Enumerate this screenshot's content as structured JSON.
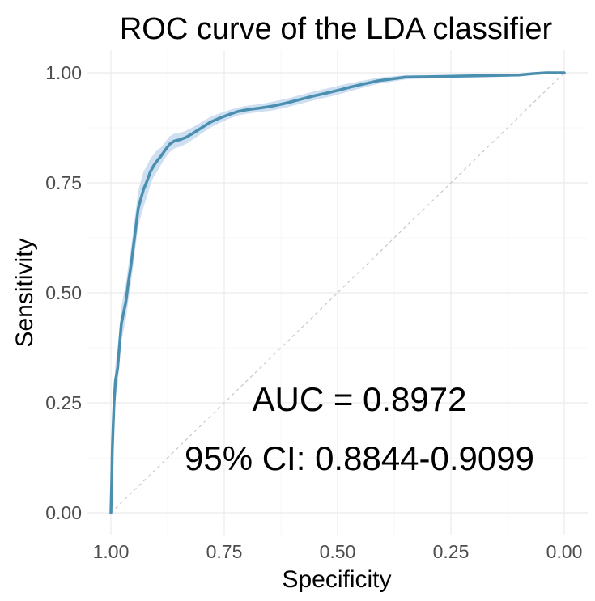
{
  "chart_data": {
    "type": "line",
    "title": "ROC curve of the LDA classifier",
    "xlabel": "Specificity",
    "ylabel": "Sensitivity",
    "xlim": [
      1.0,
      0.0
    ],
    "ylim": [
      0.0,
      1.0
    ],
    "x_reversed": true,
    "x_ticks": [
      1.0,
      0.75,
      0.5,
      0.25,
      0.0
    ],
    "x_tick_labels": [
      "1.00",
      "0.75",
      "0.50",
      "0.25",
      "0.00"
    ],
    "y_ticks": [
      0.0,
      0.25,
      0.5,
      0.75,
      1.0
    ],
    "y_tick_labels": [
      "0.00",
      "0.25",
      "0.50",
      "0.75",
      "1.00"
    ],
    "grid": true,
    "colors": {
      "curve": "#4a8fb0",
      "ci_band": "#c4d9ee",
      "diagonal": "#c8c8c8"
    },
    "series": [
      {
        "name": "ROC",
        "specificity": [
          1.0,
          0.998,
          0.997,
          0.995,
          0.993,
          0.99,
          0.985,
          0.982,
          0.977,
          0.973,
          0.967,
          0.962,
          0.956,
          0.951,
          0.946,
          0.94,
          0.935,
          0.928,
          0.92,
          0.913,
          0.905,
          0.898,
          0.89,
          0.88,
          0.87,
          0.86,
          0.848,
          0.835,
          0.82,
          0.8,
          0.78,
          0.76,
          0.74,
          0.72,
          0.7,
          0.67,
          0.64,
          0.61,
          0.58,
          0.55,
          0.52,
          0.5,
          0.47,
          0.44,
          0.41,
          0.38,
          0.35,
          0.3,
          0.25,
          0.2,
          0.15,
          0.1,
          0.07,
          0.04,
          0.0
        ],
        "sensitivity": [
          0.0,
          0.08,
          0.14,
          0.2,
          0.25,
          0.3,
          0.33,
          0.37,
          0.43,
          0.45,
          0.48,
          0.52,
          0.56,
          0.6,
          0.64,
          0.69,
          0.71,
          0.735,
          0.755,
          0.775,
          0.79,
          0.8,
          0.81,
          0.825,
          0.838,
          0.845,
          0.848,
          0.853,
          0.862,
          0.875,
          0.888,
          0.897,
          0.905,
          0.912,
          0.916,
          0.92,
          0.925,
          0.932,
          0.94,
          0.948,
          0.955,
          0.96,
          0.968,
          0.975,
          0.982,
          0.986,
          0.99,
          0.991,
          0.992,
          0.993,
          0.994,
          0.995,
          0.998,
          1.0,
          1.0
        ],
        "ci_lower": [
          0.0,
          0.06,
          0.11,
          0.17,
          0.22,
          0.26,
          0.29,
          0.33,
          0.39,
          0.41,
          0.44,
          0.48,
          0.52,
          0.56,
          0.6,
          0.65,
          0.67,
          0.695,
          0.72,
          0.745,
          0.765,
          0.775,
          0.79,
          0.807,
          0.82,
          0.828,
          0.832,
          0.838,
          0.848,
          0.862,
          0.876,
          0.886,
          0.895,
          0.903,
          0.907,
          0.911,
          0.915,
          0.922,
          0.93,
          0.938,
          0.945,
          0.95,
          0.959,
          0.967,
          0.975,
          0.98,
          0.985,
          0.987,
          0.988,
          0.989,
          0.99,
          0.992,
          0.995,
          0.998,
          1.0
        ],
        "ci_upper": [
          0.0,
          0.1,
          0.17,
          0.23,
          0.28,
          0.34,
          0.37,
          0.41,
          0.47,
          0.49,
          0.52,
          0.56,
          0.6,
          0.64,
          0.68,
          0.73,
          0.75,
          0.775,
          0.79,
          0.805,
          0.815,
          0.825,
          0.83,
          0.843,
          0.856,
          0.862,
          0.864,
          0.868,
          0.876,
          0.888,
          0.9,
          0.908,
          0.915,
          0.921,
          0.925,
          0.929,
          0.935,
          0.942,
          0.95,
          0.958,
          0.965,
          0.97,
          0.977,
          0.983,
          0.989,
          0.992,
          0.995,
          0.995,
          0.996,
          0.997,
          0.998,
          0.998,
          1.0,
          1.0,
          1.0
        ]
      }
    ],
    "annotations": {
      "auc": "AUC = 0.8972",
      "ci": "95% CI: 0.8844-0.9099"
    }
  }
}
